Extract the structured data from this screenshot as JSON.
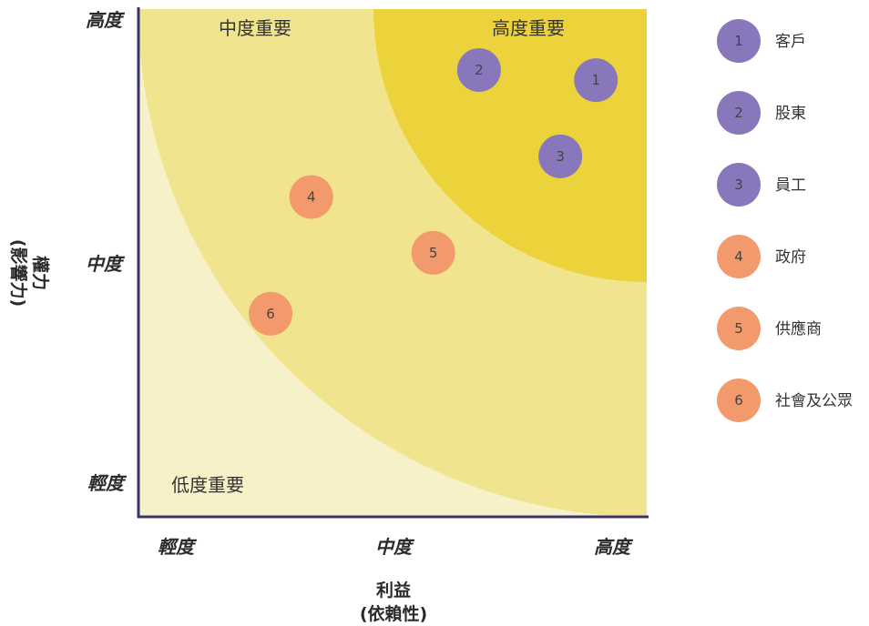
{
  "axes": {
    "y_title": "權力",
    "y_subtitle": "(影響力)",
    "x_title": "利益",
    "x_subtitle": "(依賴性)",
    "y_ticks": [
      "高度",
      "中度",
      "輕度"
    ],
    "x_ticks": [
      "輕度",
      "中度",
      "高度"
    ]
  },
  "zones": {
    "high": "高度重要",
    "medium": "中度重要",
    "low": "低度重要"
  },
  "colors": {
    "zone_low": "#f6f1c8",
    "zone_medium": "#f1e48e",
    "zone_high": "#ecd33c",
    "frame": "#3a3268",
    "purple": "#8877bb",
    "orange": "#f29a6c"
  },
  "stakeholders": [
    {
      "num": "1",
      "name": "客戶",
      "group": "purple",
      "interest": 0.9,
      "power": 0.86
    },
    {
      "num": "2",
      "name": "股東",
      "group": "purple",
      "interest": 0.67,
      "power": 0.88
    },
    {
      "num": "3",
      "name": "員工",
      "group": "purple",
      "interest": 0.83,
      "power": 0.71
    },
    {
      "num": "4",
      "name": "政府",
      "group": "orange",
      "interest": 0.34,
      "power": 0.63
    },
    {
      "num": "5",
      "name": "供應商",
      "group": "orange",
      "interest": 0.58,
      "power": 0.52
    },
    {
      "num": "6",
      "name": "社會及公眾",
      "group": "orange",
      "interest": 0.26,
      "power": 0.4
    }
  ]
}
